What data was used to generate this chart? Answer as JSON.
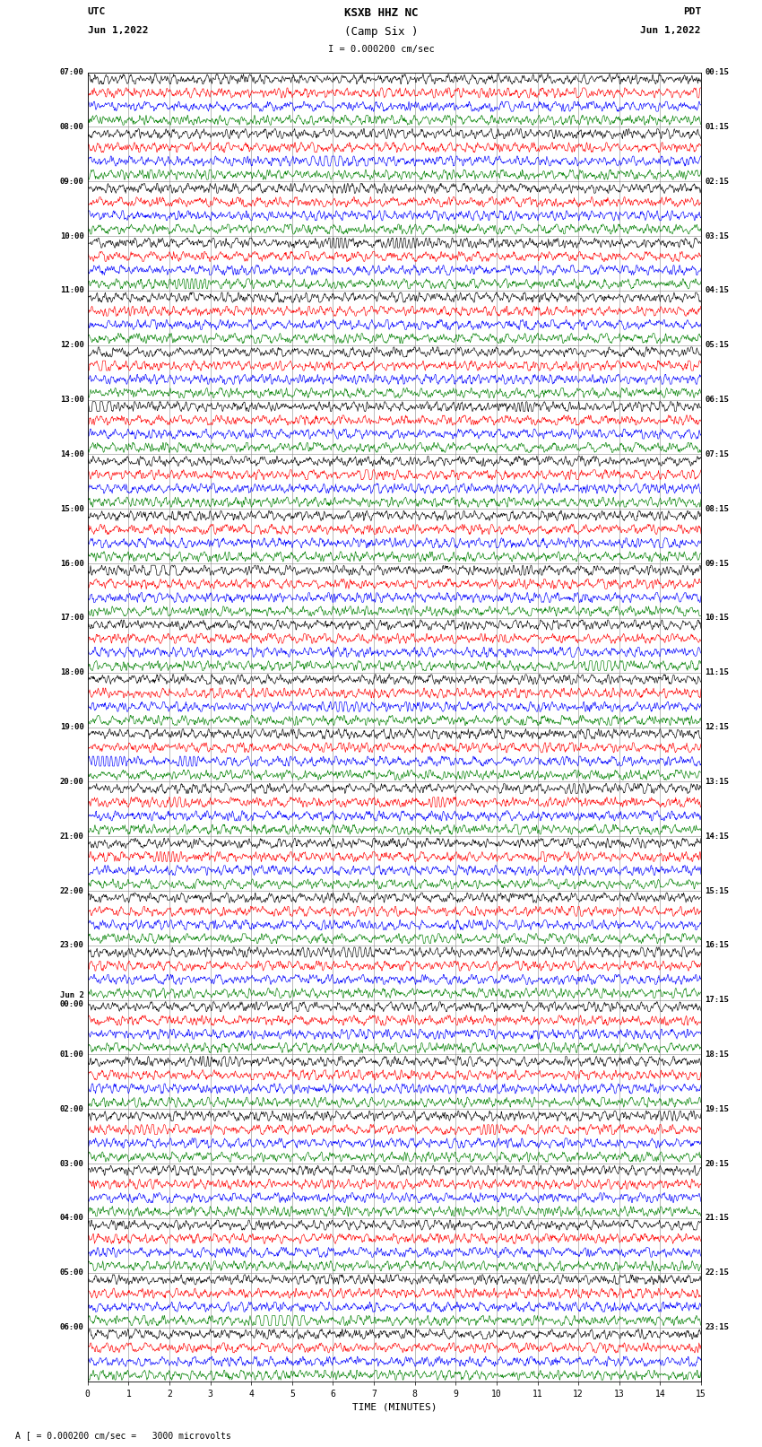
{
  "title_line1": "KSXB HHZ NC",
  "title_line2": "(Camp Six )",
  "scale_label": "I = 0.000200 cm/sec",
  "bottom_label": "A [ = 0.000200 cm/sec =   3000 microvolts",
  "xlabel": "TIME (MINUTES)",
  "left_header_line1": "UTC",
  "left_header_line2": "Jun 1,2022",
  "right_header_line1": "PDT",
  "right_header_line2": "Jun 1,2022",
  "left_times": [
    "07:00",
    "08:00",
    "09:00",
    "10:00",
    "11:00",
    "12:00",
    "13:00",
    "14:00",
    "15:00",
    "16:00",
    "17:00",
    "18:00",
    "19:00",
    "20:00",
    "21:00",
    "22:00",
    "23:00",
    "Jun 2\n00:00",
    "01:00",
    "02:00",
    "03:00",
    "04:00",
    "05:00",
    "06:00"
  ],
  "right_times": [
    "00:15",
    "01:15",
    "02:15",
    "03:15",
    "04:15",
    "05:15",
    "06:15",
    "07:15",
    "08:15",
    "09:15",
    "10:15",
    "11:15",
    "12:15",
    "13:15",
    "14:15",
    "15:15",
    "16:15",
    "17:15",
    "18:15",
    "19:15",
    "20:15",
    "21:15",
    "22:15",
    "23:15"
  ],
  "colors": [
    "black",
    "red",
    "blue",
    "green"
  ],
  "n_rows": 24,
  "traces_per_row": 4,
  "background_color": "white",
  "xticks": [
    0,
    1,
    2,
    3,
    4,
    5,
    6,
    7,
    8,
    9,
    10,
    11,
    12,
    13,
    14,
    15
  ],
  "xmin": 0,
  "xmax": 15,
  "samples_per_minute": 100
}
